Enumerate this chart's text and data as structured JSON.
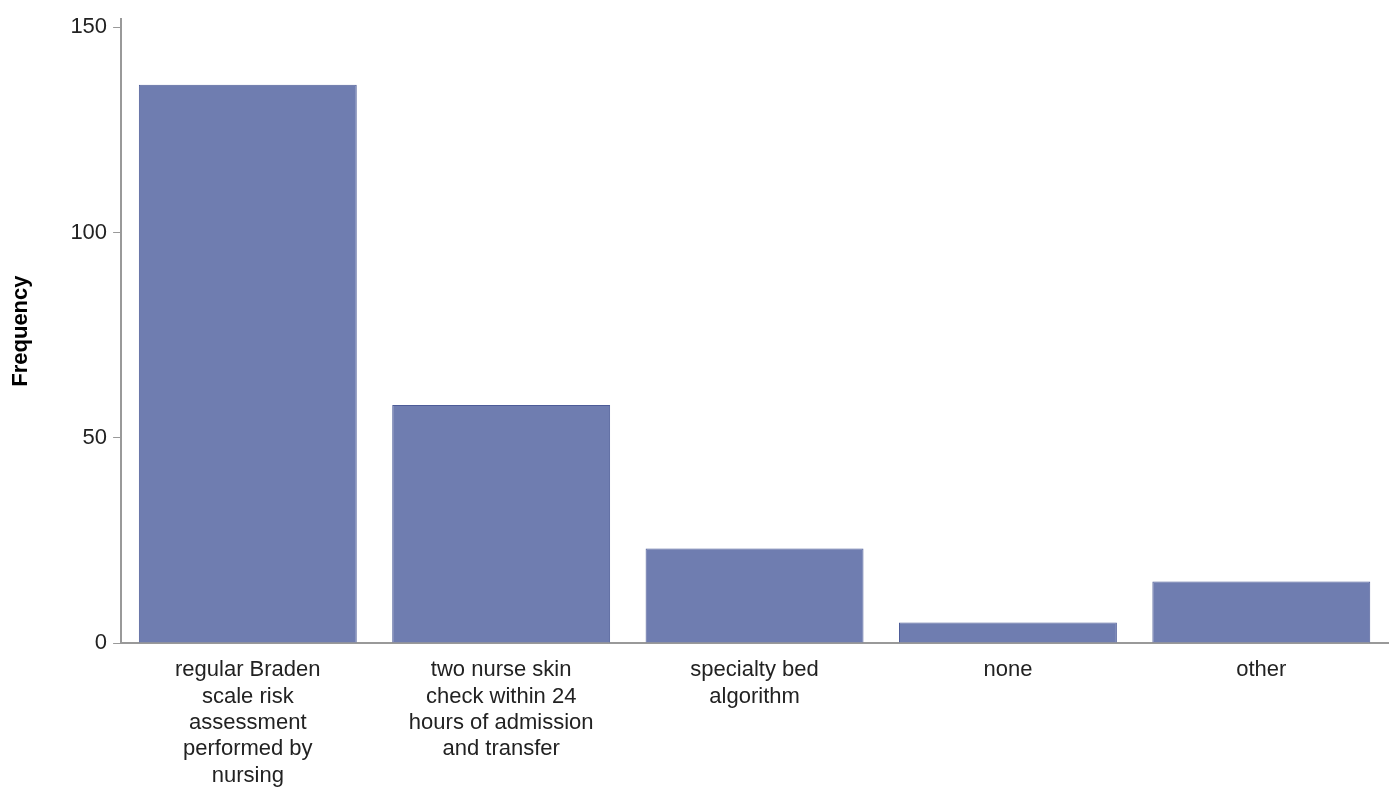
{
  "chart_data": {
    "type": "bar",
    "ylabel": "Frequency",
    "categories": [
      "regular Braden scale risk assessment performed by nursing",
      "two nurse skin check within 24 hours of admission and transfer",
      "specialty bed algorithm",
      "none",
      "other"
    ],
    "values": [
      136,
      58,
      23,
      5,
      15
    ],
    "color": "#6f7db0",
    "ylim": [
      0,
      152
    ],
    "yticks": [
      0,
      50,
      100,
      150
    ],
    "grid": false,
    "legend": false
  }
}
